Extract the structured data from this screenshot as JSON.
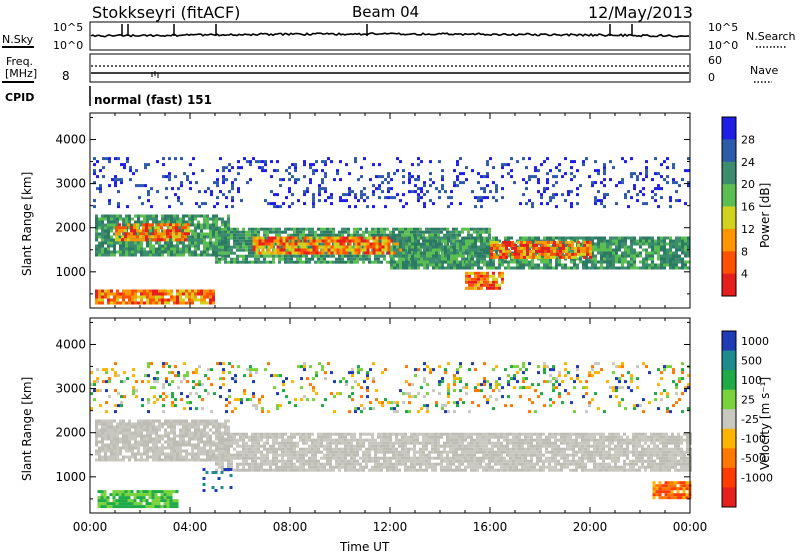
{
  "header": {
    "station": "Stokkseyri (fitACF)",
    "beam": "Beam 04",
    "date": "12/May/2013"
  },
  "noise_panel": {
    "left_label": "N.Sky",
    "right_label": "N.Search",
    "left_ticks": [
      "10^5",
      "10^0"
    ],
    "right_ticks": [
      "10^5",
      "10^0"
    ]
  },
  "freq_panel": {
    "left_label_1": "Freq.",
    "left_label_2": "[MHz]",
    "left_tick": "8",
    "right_label": "Nave",
    "right_ticks": [
      "60",
      "0"
    ]
  },
  "cpid": {
    "label": "CPID",
    "value": "normal (fast) 151"
  },
  "chart_data": [
    {
      "type": "heatmap",
      "title": "",
      "ylabel": "Slant Range [km]",
      "xlabel": "",
      "xlim": [
        0,
        24
      ],
      "ylim": [
        180,
        4600
      ],
      "y_ticks": [
        "1000",
        "2000",
        "3000",
        "4000"
      ],
      "colorbar": {
        "label": "Power [dB]",
        "ticks": [
          "4",
          "8",
          "12",
          "16",
          "20",
          "24",
          "28"
        ],
        "colors": [
          "#1e1ee6",
          "#2d5aaa",
          "#3c8c6e",
          "#5abe50",
          "#d2d21e",
          "#ff9600",
          "#ff5000",
          "#e61e1e"
        ]
      },
      "regions": [
        {
          "t0": 0.2,
          "t1": 5.5,
          "r0": 1400,
          "r1": 2300,
          "level": "green"
        },
        {
          "t0": 1.0,
          "t1": 4.0,
          "r0": 1700,
          "r1": 2100,
          "level": "orange"
        },
        {
          "t0": 5.0,
          "t1": 16.0,
          "r0": 1200,
          "r1": 2000,
          "level": "green"
        },
        {
          "t0": 6.5,
          "t1": 12.5,
          "r0": 1450,
          "r1": 1800,
          "level": "orange"
        },
        {
          "t0": 12.0,
          "t1": 24.0,
          "r0": 1100,
          "r1": 1800,
          "level": "green"
        },
        {
          "t0": 16.0,
          "t1": 20.0,
          "r0": 1350,
          "r1": 1700,
          "level": "orange"
        },
        {
          "t0": 0.2,
          "t1": 5.0,
          "r0": 300,
          "r1": 600,
          "level": "orange"
        },
        {
          "t0": 15.0,
          "t1": 16.5,
          "r0": 600,
          "r1": 1000,
          "level": "orange"
        },
        {
          "t0": 0.0,
          "t1": 24.0,
          "r0": 2500,
          "r1": 3600,
          "level": "blue"
        }
      ]
    },
    {
      "type": "heatmap",
      "title": "",
      "ylabel": "Slant Range [km]",
      "xlabel": "Time UT",
      "xlim": [
        0,
        24
      ],
      "ylim": [
        180,
        4600
      ],
      "y_ticks": [
        "1000",
        "2000",
        "3000",
        "4000"
      ],
      "x_ticks": [
        "00:00",
        "04:00",
        "08:00",
        "12:00",
        "16:00",
        "20:00",
        "00:00"
      ],
      "colorbar": {
        "label": "Velocity [m s⁻¹]",
        "ticks": [
          "1000",
          "500",
          "100",
          "25",
          "-25",
          "-100",
          "-500",
          "-1000"
        ],
        "colors": [
          "#1e3cb4",
          "#1e8c8c",
          "#1eaa46",
          "#78d23c",
          "#c8c8c0",
          "#ffb400",
          "#ff7800",
          "#ff3c00",
          "#e61e1e"
        ]
      },
      "regions": [
        {
          "t0": 0.2,
          "t1": 5.5,
          "r0": 1400,
          "r1": 2300,
          "level": "grey"
        },
        {
          "t0": 5.0,
          "t1": 24.0,
          "r0": 1150,
          "r1": 2000,
          "level": "grey"
        },
        {
          "t0": 0.3,
          "t1": 3.5,
          "r0": 300,
          "r1": 700,
          "level": "green"
        },
        {
          "t0": 4.5,
          "t1": 5.6,
          "r0": 700,
          "r1": 1200,
          "level": "blue"
        },
        {
          "t0": 22.5,
          "t1": 24.0,
          "r0": 500,
          "r1": 900,
          "level": "orange"
        },
        {
          "t0": 0.0,
          "t1": 24.0,
          "r0": 2500,
          "r1": 3600,
          "level": "mixed"
        }
      ]
    }
  ]
}
